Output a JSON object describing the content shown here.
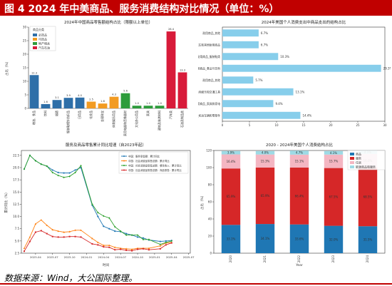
{
  "page": {
    "title": "图 4 2024 年中美商品、服务消费结构对比情况（单位：%）",
    "source": "数据来源：Wind，大公国际整理。"
  },
  "colors": {
    "header": "#c00000"
  },
  "chart_data": [
    {
      "type": "bar",
      "title": "2024年中国商品零售额结构占比（限额以上单位）",
      "xlabel": "",
      "ylabel": "占比（%）",
      "legend_title": "商品分类",
      "legend": [
        {
          "name": "必选品",
          "color": "#2e6fa8"
        },
        {
          "name": "可选品",
          "color": "#f29b22"
        },
        {
          "name": "地产相关",
          "color": "#2e9c3c"
        },
        {
          "name": "汽车石油",
          "color": "#d81b3a"
        }
      ],
      "categories": [
        "粮油、食品",
        "饮料",
        "烟酒",
        "服装鞋帽针纺织品",
        "日用品",
        "化妆品",
        "金银珠宝",
        "体育娱乐用品",
        "家用电器和音像器材",
        "文化办公用品",
        "家具",
        "建筑及装潢材料",
        "汽车类",
        "石油及制品类"
      ],
      "values": [
        12.3,
        1.6,
        3.1,
        3.9,
        4.0,
        2.5,
        1.8,
        4.3,
        5.6,
        1.0,
        1.0,
        1.0,
        28.4,
        13.3
      ],
      "value_labels": [
        "12.3",
        "1.6",
        "3.1",
        "3.9",
        "4.0",
        "2.5",
        "1.8",
        "4.3",
        "5.6",
        "1.0",
        "1.0",
        "1.0",
        "28.4",
        "13.3"
      ],
      "groups": [
        "必选品",
        "必选品",
        "必选品",
        "必选品",
        "必选品",
        "可选品",
        "可选品",
        "可选品",
        "地产相关",
        "地产相关",
        "地产相关",
        "地产相关",
        "汽车石油",
        "汽车石油"
      ],
      "ylim": [
        0,
        30
      ]
    },
    {
      "type": "bar",
      "orientation": "horizontal",
      "title": "2024年美国个人消费支出中商品支出的结构占比",
      "xlabel": "",
      "ylabel": "",
      "color": "#87ceeb",
      "categories": [
        "耐用商品_其他",
        "耐用商品_汽车和其他耐用商品",
        "耐用商品_服装鞋类",
        "非耐用商品_食品与饮料",
        "耐用商品_其他",
        "耐用商品_休闲娱乐和交通工具",
        "耐用商品_家具和家电",
        "耐用商品_机动车辆和零部件"
      ],
      "values": [
        6.7,
        6.7,
        10.3,
        29.3,
        5.7,
        13.1,
        9.4,
        14.4
      ],
      "value_labels": [
        "6.7%",
        "6.7%",
        "10.3%",
        "29.3%",
        "5.7%",
        "13.1%",
        "9.4%",
        "14.4%"
      ],
      "xticks": [
        "0",
        "5",
        "10",
        "15",
        "20",
        "25",
        "30"
      ],
      "xlim": [
        0,
        30
      ]
    },
    {
      "type": "line",
      "title": "服务及商品零售累计同比增速（自2023年起）",
      "xlabel": "时间",
      "ylabel": "累计同比（%）",
      "x": [
        "2023-02",
        "2023-03",
        "2023-04",
        "2023-05",
        "2023-06",
        "2023-07",
        "2023-08",
        "2023-09",
        "2023-10",
        "2023-11",
        "2023-12",
        "2024-02",
        "2024-03",
        "2024-04",
        "2024-05",
        "2024-06",
        "2024-07",
        "2024-08",
        "2024-09",
        "2024-10",
        "2024-11",
        "2024-12",
        "2025-02",
        "2025-03",
        "2025-04"
      ],
      "xticks": [
        "2023-04",
        "2023-07",
        "2023-10",
        "2024-01",
        "2024-04",
        "2024-07",
        "2024-10",
        "2025-01",
        "2025-04",
        "2025-07"
      ],
      "yticks": [
        "2.5",
        "5.0",
        "7.5",
        "10.0",
        "12.5",
        "15.0",
        "17.5",
        "20.0",
        "22.5"
      ],
      "ylim": [
        2.5,
        23.5
      ],
      "series": [
        {
          "name": "中国：服务零售额：累计同比",
          "color": "#1f77b4",
          "values": [
            19.7,
            22.5,
            21.4,
            20.7,
            20.3,
            19.5,
            19.0,
            18.9,
            18.9,
            19.5,
            20.0,
            12.3,
            10.0,
            8.0,
            7.5,
            7.0,
            6.9,
            6.5,
            6.2,
            5.8,
            5.6,
            5.2,
            4.9,
            5.0,
            5.1
          ]
        },
        {
          "name": "中国：社会消费品零售总额：累计同比",
          "color": "#ff7f0e",
          "values": [
            3.5,
            5.8,
            8.5,
            9.3,
            8.2,
            7.3,
            7.0,
            6.8,
            6.9,
            7.2,
            7.2,
            5.5,
            4.7,
            4.1,
            4.1,
            3.7,
            3.5,
            3.4,
            3.3,
            3.5,
            3.5,
            3.5,
            4.0,
            4.6,
            4.7
          ]
        },
        {
          "name": "中国：社会消费品零售总额：餐饮收入：累计同比",
          "color": "#2ca02c",
          "values": [
            19.7,
            22.5,
            21.4,
            20.7,
            20.3,
            19.0,
            18.4,
            18.0,
            18.2,
            19.0,
            20.4,
            12.5,
            10.8,
            10.1,
            9.7,
            7.9,
            7.0,
            6.2,
            6.2,
            6.2,
            5.3,
            5.3,
            4.3,
            4.7,
            5.0
          ]
        },
        {
          "name": "中国：社会消费品零售总额：商品零售：累计同比",
          "color": "#d62728",
          "values": [
            2.9,
            4.9,
            6.8,
            7.1,
            6.5,
            5.9,
            5.8,
            5.8,
            5.9,
            5.9,
            5.8,
            4.4,
            4.2,
            3.8,
            3.7,
            3.2,
            3.3,
            3.1,
            3.0,
            3.3,
            3.4,
            3.2,
            3.4,
            4.2,
            4.6
          ]
        }
      ]
    },
    {
      "type": "bar",
      "stacked": true,
      "title": "2020 - 2024年美国个人消费结构占比",
      "xlabel": "Year",
      "ylabel": "占比（%）",
      "categories": [
        "2020",
        "2021",
        "2022",
        "2023",
        "2024"
      ],
      "yticks": [
        "0",
        "20",
        "40",
        "60",
        "80",
        "100",
        "120"
      ],
      "ylim": [
        0,
        120
      ],
      "series": [
        {
          "name": "商品",
          "color": "#1f77b4",
          "values": [
            33.1,
            34.1,
            33.6,
            32.0,
            31.5
          ],
          "labels": [
            "33.1%",
            "34.1%",
            "33.6%",
            "32.0%",
            "31.5%"
          ]
        },
        {
          "name": "服务",
          "color": "#d62728",
          "values": [
            65.9,
            65.9,
            66.4,
            67.5,
            68.5
          ],
          "labels": [
            "65.9%",
            "65.9%",
            "66.4%",
            "67.5%",
            "68.5%"
          ]
        },
        {
          "name": "住房",
          "color": "#f4b6c2",
          "values": [
            16.4,
            15.3,
            15.1,
            15.7,
            16.0
          ],
          "labels": [
            "16.4%",
            "15.3%",
            "15.1%",
            "15.7%",
            "16.0%"
          ]
        },
        {
          "name": "能源商品和服务",
          "color": "#9edae5",
          "values": [
            3.9,
            4.0,
            4.7,
            4.1,
            4.1
          ],
          "labels": [
            "3.9%",
            "4.0%",
            "4.7%",
            "4.1%",
            "4.1%"
          ]
        }
      ]
    }
  ]
}
